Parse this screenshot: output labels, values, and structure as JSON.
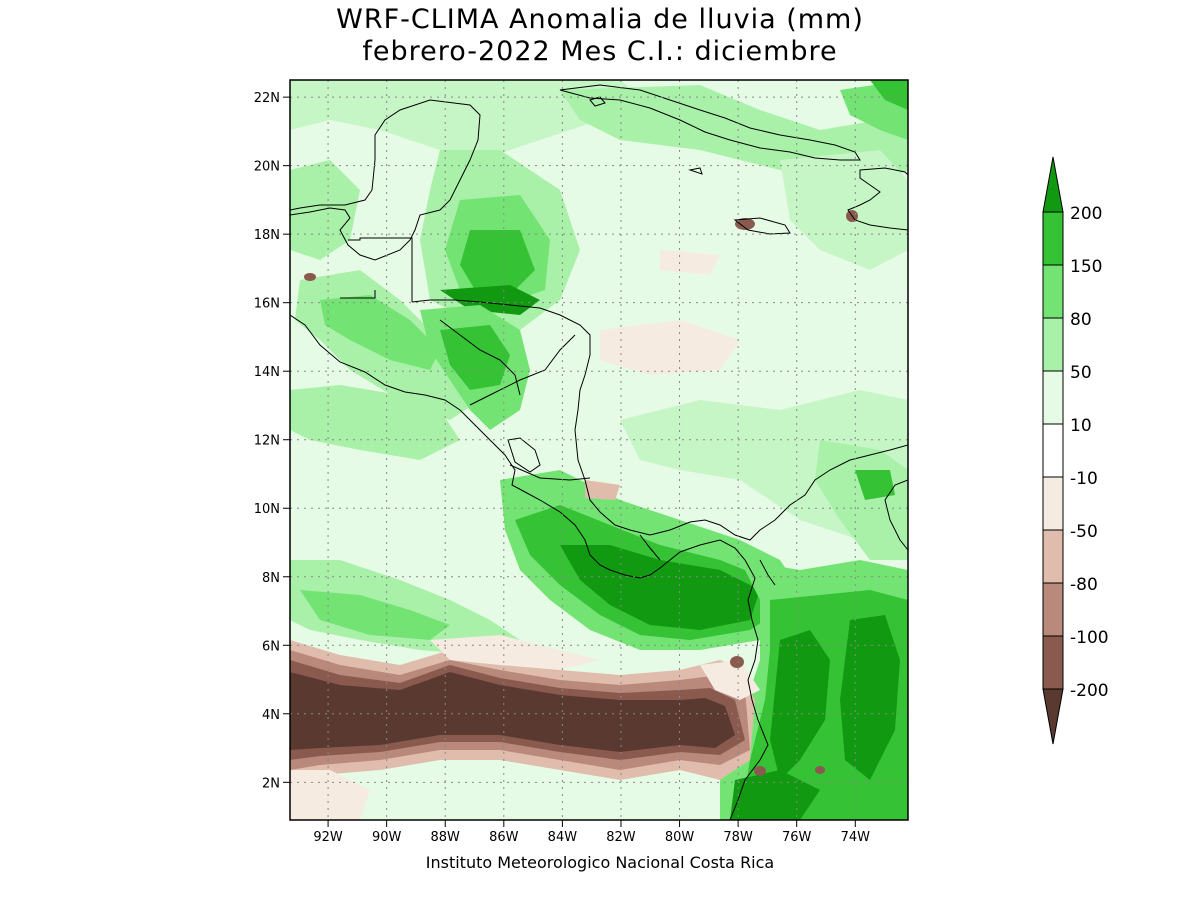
{
  "title_line1": "WRF-CLIMA Anomalia de lluvia (mm)",
  "title_line2": "febrero-2022 Mes C.I.: diciembre",
  "credit": "Instituto Meteorologico Nacional Costa Rica",
  "map": {
    "lon_range": [
      -93.3,
      -72.2
    ],
    "lat_range": [
      0.9,
      22.5
    ],
    "lon_ticks": [
      {
        "value": -92,
        "label": "92W"
      },
      {
        "value": -90,
        "label": "90W"
      },
      {
        "value": -88,
        "label": "88W"
      },
      {
        "value": -86,
        "label": "86W"
      },
      {
        "value": -84,
        "label": "84W"
      },
      {
        "value": -82,
        "label": "82W"
      },
      {
        "value": -80,
        "label": "80W"
      },
      {
        "value": -78,
        "label": "78W"
      },
      {
        "value": -76,
        "label": "76W"
      },
      {
        "value": -74,
        "label": "74W"
      }
    ],
    "lat_ticks": [
      {
        "value": 2,
        "label": "2N"
      },
      {
        "value": 4,
        "label": "4N"
      },
      {
        "value": 6,
        "label": "6N"
      },
      {
        "value": 8,
        "label": "8N"
      },
      {
        "value": 10,
        "label": "10N"
      },
      {
        "value": 12,
        "label": "12N"
      },
      {
        "value": 14,
        "label": "14N"
      },
      {
        "value": 16,
        "label": "16N"
      },
      {
        "value": 18,
        "label": "18N"
      },
      {
        "value": 20,
        "label": "20N"
      },
      {
        "value": 22,
        "label": "22N"
      }
    ]
  },
  "legend": {
    "labels": [
      "200",
      "150",
      "80",
      "50",
      "10",
      "-10",
      "-50",
      "-80",
      "-100",
      "-200"
    ],
    "colors": [
      "#119a11",
      "#35c235",
      "#73e473",
      "#a9f0a9",
      "#e6fbe6",
      "#ffffff",
      "#f5ebe1",
      "#e0bcac",
      "#b9897b",
      "#8a5a4e",
      "#5a3a30"
    ]
  }
}
